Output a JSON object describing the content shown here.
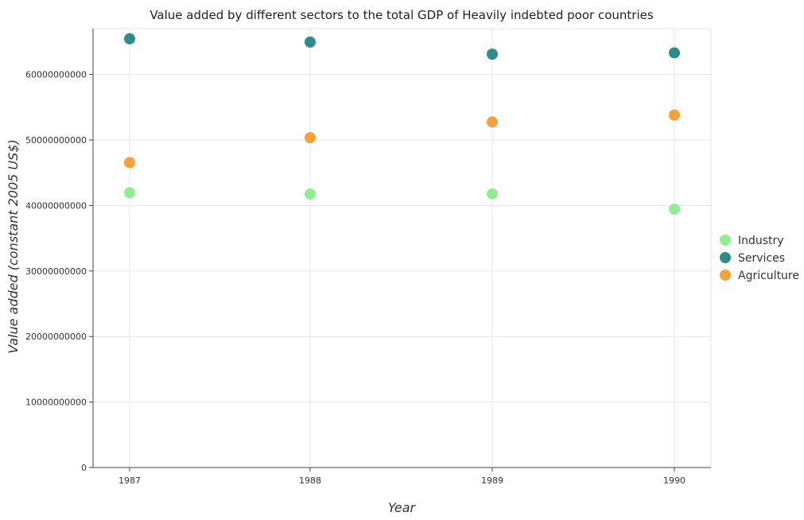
{
  "chart_data": {
    "type": "scatter",
    "title": "Value added by different sectors to the total GDP of Heavily indebted poor countries",
    "xlabel": "Year",
    "ylabel": "Value added (constant 2005 US$)",
    "categories": [
      "1987",
      "1988",
      "1989",
      "1990"
    ],
    "ylim": [
      0,
      67000000000
    ],
    "yticks": [
      0,
      10000000000,
      20000000000,
      30000000000,
      40000000000,
      50000000000,
      60000000000
    ],
    "ytick_labels": [
      "0",
      "10000000000",
      "20000000000",
      "30000000000",
      "40000000000",
      "50000000000",
      "60000000000"
    ],
    "grid": true,
    "legend_position": "right",
    "series": [
      {
        "name": "Industry",
        "color": "#90ee90",
        "values": [
          41950000000,
          41750000000,
          41780000000,
          39450000000
        ]
      },
      {
        "name": "Services",
        "color": "#2e8b8b",
        "values": [
          65450000000,
          64950000000,
          63100000000,
          63300000000
        ]
      },
      {
        "name": "Agriculture",
        "color": "#f4a137",
        "values": [
          46550000000,
          50350000000,
          52750000000,
          53800000000
        ]
      }
    ]
  }
}
